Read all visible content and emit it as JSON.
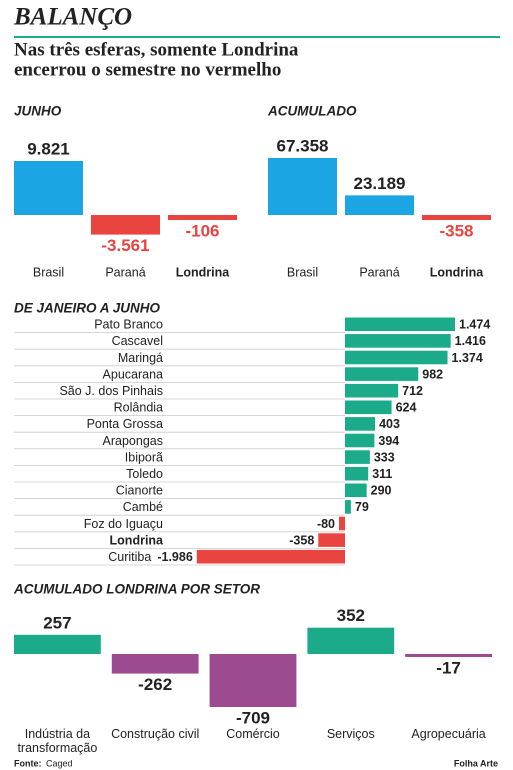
{
  "header": {
    "title": "BALANÇO",
    "subtitle": [
      "Nas três esferas, somente Londrina",
      "encerrou o semestre no vermelho"
    ]
  },
  "chart_data": [
    {
      "type": "bar",
      "title": "JUNHO",
      "categories": [
        "Brasil",
        "Paraná",
        "Londrina"
      ],
      "values": [
        9821,
        -3561,
        -106
      ],
      "value_labels": [
        "9.821",
        "-3.561",
        "-106"
      ],
      "color_positive": "#1ba6e3",
      "color_negative": "#ea4440",
      "label_color_by_sign": true
    },
    {
      "type": "bar",
      "title": "ACUMULADO",
      "categories": [
        "Brasil",
        "Paraná",
        "Londrina"
      ],
      "values": [
        67358,
        23189,
        -358
      ],
      "value_labels": [
        "67.358",
        "23.189",
        "-358"
      ],
      "color_positive": "#1ba6e3",
      "color_negative": "#ea4440",
      "label_color_by_sign": true
    },
    {
      "type": "hbar",
      "title": "DE JANEIRO A JUNHO",
      "categories": [
        "Pato Branco",
        "Cascavel",
        "Maringá",
        "Apucarana",
        "São J. dos Pinhais",
        "Rolândia",
        "Ponta Grossa",
        "Arapongas",
        "Ibiporã",
        "Toledo",
        "Cianorte",
        "Cambé",
        "Foz do Iguaçu",
        "Londrina",
        "Curitiba"
      ],
      "values": [
        1474,
        1416,
        1374,
        982,
        712,
        624,
        403,
        394,
        333,
        311,
        290,
        79,
        -80,
        -358,
        -1986
      ],
      "value_labels": [
        "1.474",
        "1.416",
        "1.374",
        "982",
        "712",
        "624",
        "403",
        "394",
        "333",
        "311",
        "290",
        "79",
        "-80",
        "-358",
        "-1.986"
      ],
      "color_positive": "#1bab8b",
      "color_negative": "#ea4440",
      "label_color_by_sign": false
    },
    {
      "type": "bar",
      "title": "ACUMULADO LONDRINA POR SETOR",
      "categories": [
        "Indústria da transformação",
        "Construção civil",
        "Comércio",
        "Serviços",
        "Agropecuária"
      ],
      "values": [
        257,
        -262,
        -709,
        352,
        -17
      ],
      "color_positive": "#1bab8b",
      "color_negative": "#9c4b91",
      "label_color_by_sign": false
    }
  ],
  "footer": {
    "source_label": "Fonte:",
    "source": "Caged",
    "credit": "Folha Arte"
  }
}
